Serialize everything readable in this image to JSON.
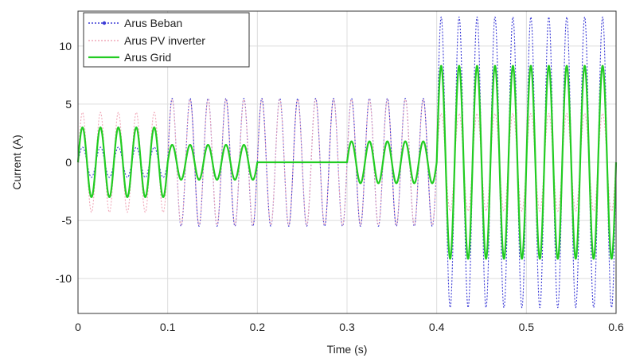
{
  "chart_data": {
    "type": "line",
    "title": "",
    "xlabel": "Time (s)",
    "ylabel": "Current (A)",
    "xlim": [
      0,
      0.6
    ],
    "ylim": [
      -13,
      13
    ],
    "xticks": [
      {
        "value": 0,
        "label": "0"
      },
      {
        "value": 0.1,
        "label": "0.1"
      },
      {
        "value": 0.2,
        "label": "0.2"
      },
      {
        "value": 0.3,
        "label": "0.3"
      },
      {
        "value": 0.4,
        "label": "0.4"
      },
      {
        "value": 0.5,
        "label": "0.5"
      },
      {
        "value": 0.6,
        "label": "0.6"
      }
    ],
    "yticks": [
      {
        "value": 10,
        "label": "10"
      },
      {
        "value": 5,
        "label": "5"
      },
      {
        "value": 0,
        "label": "0"
      },
      {
        "value": -5,
        "label": "-5"
      },
      {
        "value": -10,
        "label": "-10"
      }
    ],
    "grid": true,
    "legend_position": "top-left",
    "frequency_hz": 50,
    "series": [
      {
        "name": "Arus Beban",
        "color": "#3b3bd6",
        "style": "dotted",
        "segments": [
          {
            "t_start": 0,
            "t_end": 0.1,
            "amplitude": 1.3
          },
          {
            "t_start": 0.1,
            "t_end": 0.4,
            "amplitude": 5.5
          },
          {
            "t_start": 0.4,
            "t_end": 0.6,
            "amplitude": 12.5
          }
        ]
      },
      {
        "name": "Arus PV inverter",
        "color": "#f0a8b8",
        "style": "dotted",
        "segments": [
          {
            "t_start": 0,
            "t_end": 0.1,
            "amplitude": 4.3
          },
          {
            "t_start": 0.1,
            "t_end": 0.4,
            "amplitude": 5.4
          },
          {
            "t_start": 0.4,
            "t_end": 0.6,
            "amplitude": 4.2
          }
        ]
      },
      {
        "name": "Arus Grid",
        "color": "#22cc22",
        "style": "solid",
        "segments": [
          {
            "t_start": 0,
            "t_end": 0.1,
            "amplitude": 3.0
          },
          {
            "t_start": 0.1,
            "t_end": 0.2,
            "amplitude": 1.5
          },
          {
            "t_start": 0.2,
            "t_end": 0.3,
            "amplitude": 0.0
          },
          {
            "t_start": 0.3,
            "t_end": 0.4,
            "amplitude": 1.8
          },
          {
            "t_start": 0.4,
            "t_end": 0.6,
            "amplitude": 8.3
          }
        ]
      }
    ]
  }
}
